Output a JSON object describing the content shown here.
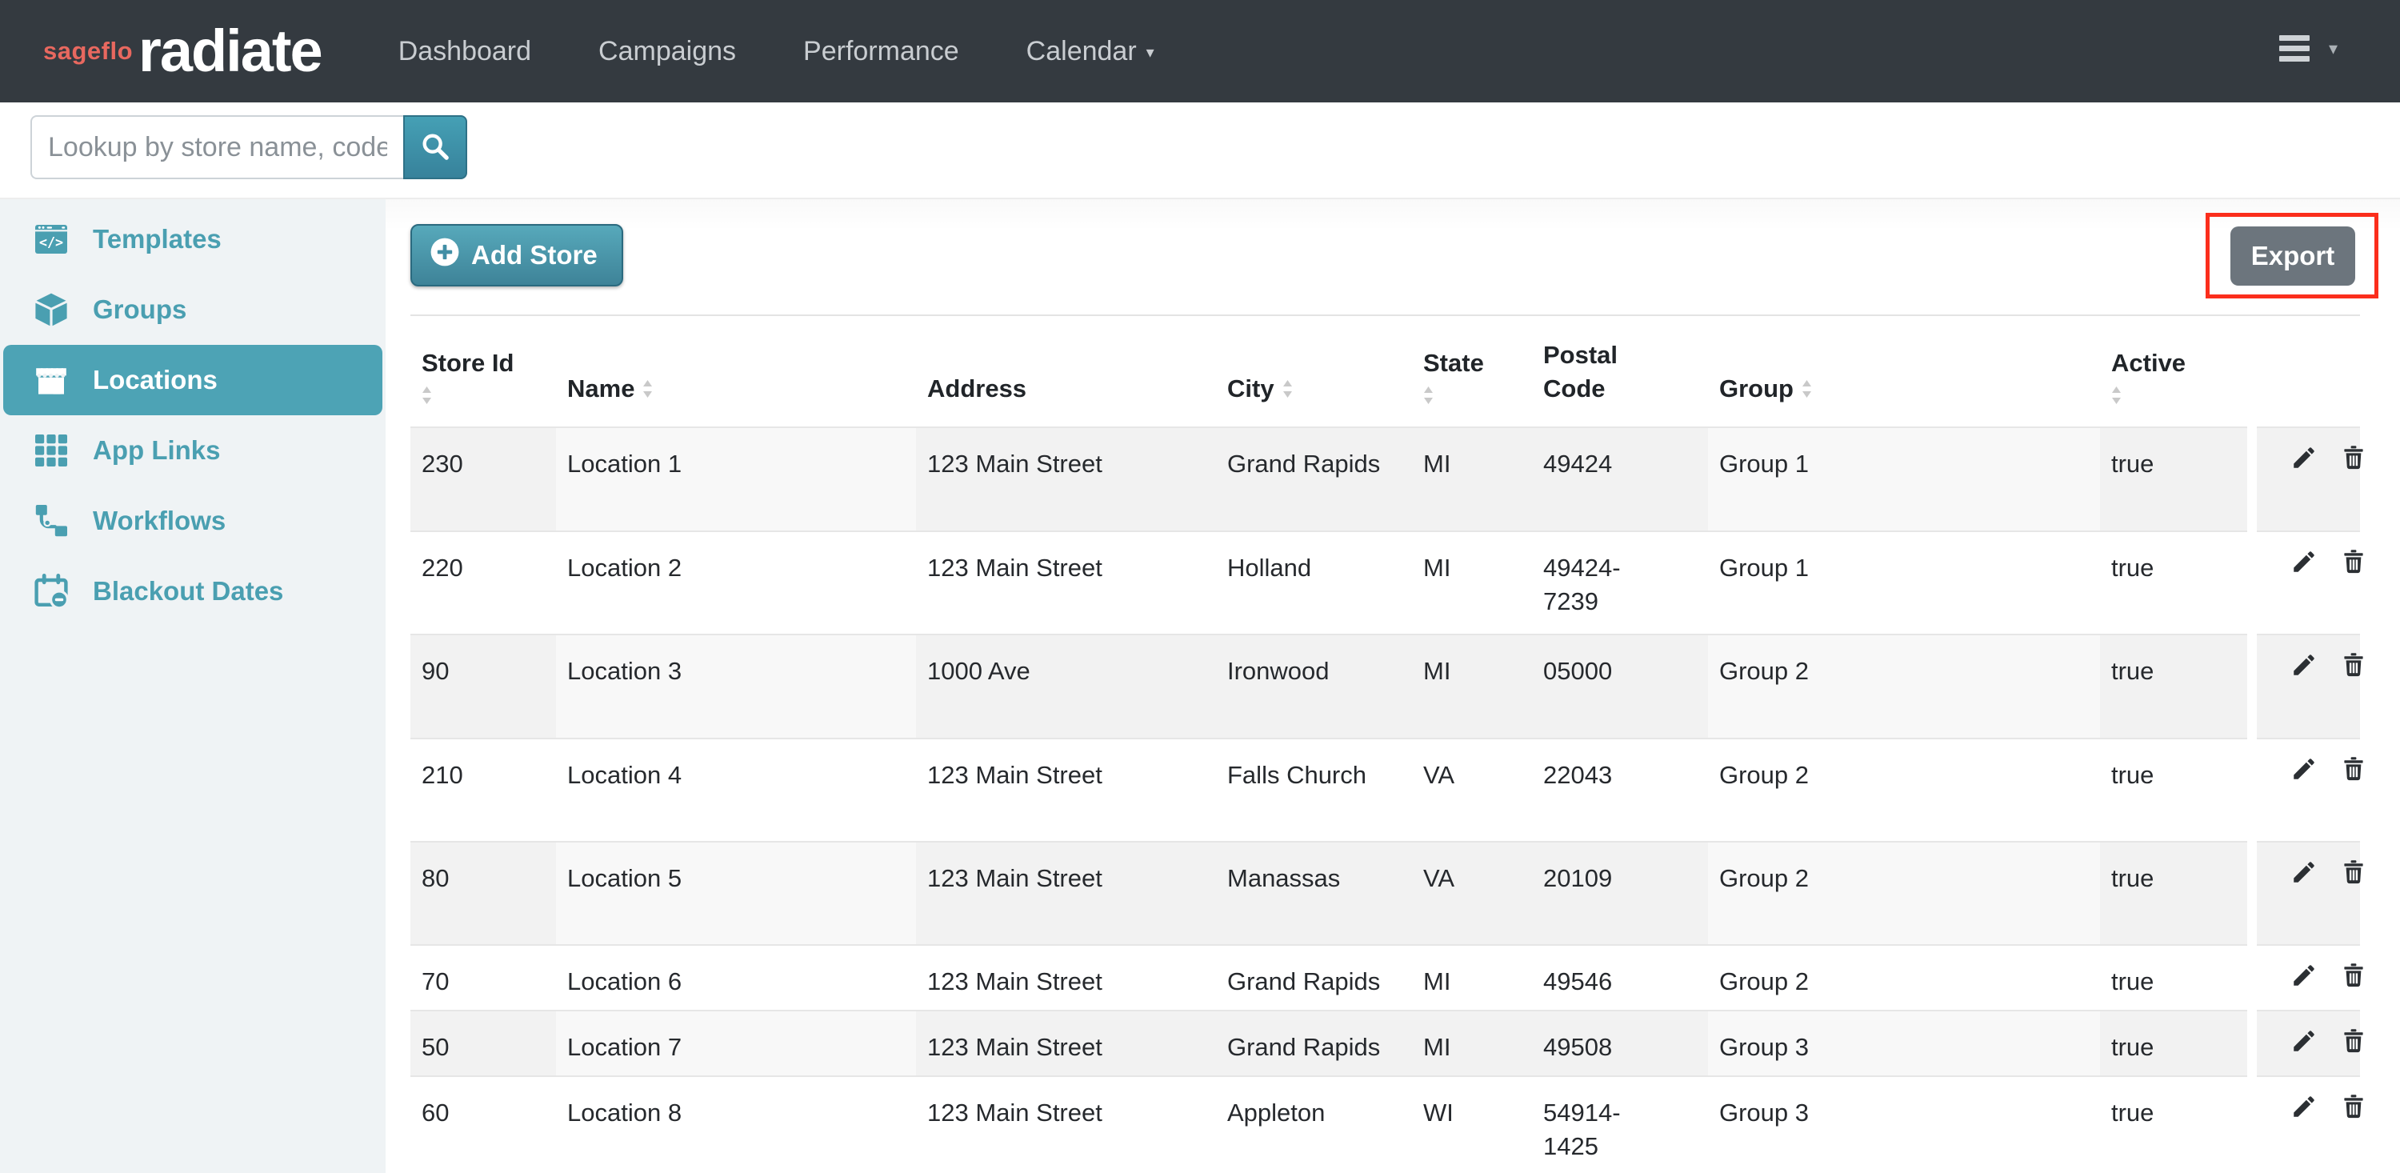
{
  "navbar": {
    "logo_prefix": "sageflo",
    "logo_text": "radiate",
    "items": [
      {
        "label": "Dashboard",
        "caret": false
      },
      {
        "label": "Campaigns",
        "caret": false
      },
      {
        "label": "Performance",
        "caret": false
      },
      {
        "label": "Calendar",
        "caret": true
      }
    ]
  },
  "search": {
    "placeholder": "Lookup by store name, code"
  },
  "sidebar": {
    "items": [
      {
        "label": "Templates",
        "icon": "templates-icon",
        "active": false
      },
      {
        "label": "Groups",
        "icon": "groups-icon",
        "active": false
      },
      {
        "label": "Locations",
        "icon": "locations-icon",
        "active": true
      },
      {
        "label": "App Links",
        "icon": "app-links-icon",
        "active": false
      },
      {
        "label": "Workflows",
        "icon": "workflows-icon",
        "active": false
      },
      {
        "label": "Blackout Dates",
        "icon": "blackout-dates-icon",
        "active": false
      }
    ]
  },
  "toolbar": {
    "add_store_label": "Add Store",
    "export_label": "Export"
  },
  "table": {
    "columns": [
      {
        "label": "Store Id",
        "sortable": true
      },
      {
        "label": "Name",
        "sortable": true
      },
      {
        "label": "Address",
        "sortable": false
      },
      {
        "label": "City",
        "sortable": true
      },
      {
        "label": "State",
        "sortable": true
      },
      {
        "label": "Postal Code",
        "sortable": false
      },
      {
        "label": "Group",
        "sortable": true
      },
      {
        "label": "Active",
        "sortable": true
      },
      {
        "label": "",
        "sortable": false
      }
    ],
    "rows": [
      {
        "store_id": "230",
        "name": "Location 1",
        "address": "123 Main Street",
        "city": "Grand Rapids",
        "state": "MI",
        "postal": "49424",
        "group": "Group 1",
        "active": "true"
      },
      {
        "store_id": "220",
        "name": "Location 2",
        "address": "123 Main Street",
        "city": "Holland",
        "state": "MI",
        "postal": "49424-7239",
        "group": "Group 1",
        "active": "true"
      },
      {
        "store_id": "90",
        "name": "Location 3",
        "address": "1000 Ave",
        "city": "Ironwood",
        "state": "MI",
        "postal": "05000",
        "group": "Group 2",
        "active": "true"
      },
      {
        "store_id": "210",
        "name": "Location 4",
        "address": "123 Main Street",
        "city": "Falls Church",
        "state": "VA",
        "postal": "22043",
        "group": "Group 2",
        "active": "true"
      },
      {
        "store_id": "80",
        "name": "Location 5",
        "address": "123 Main Street",
        "city": "Manassas",
        "state": "VA",
        "postal": "20109",
        "group": "Group 2",
        "active": "true"
      },
      {
        "store_id": "70",
        "name": "Location 6",
        "address": "123 Main Street",
        "city": "Grand Rapids",
        "state": "MI",
        "postal": "49546",
        "group": "Group 2",
        "active": "true"
      },
      {
        "store_id": "50",
        "name": "Location 7",
        "address": "123 Main Street",
        "city": "Grand Rapids",
        "state": "MI",
        "postal": "49508",
        "group": "Group 3",
        "active": "true"
      },
      {
        "store_id": "60",
        "name": "Location 8",
        "address": "123 Main Street",
        "city": "Appleton",
        "state": "WI",
        "postal": "54914-1425",
        "group": "Group 3",
        "active": "true"
      }
    ]
  },
  "colors": {
    "navbar_bg": "#343a40",
    "logo_red": "#e8685f",
    "accent_teal": "#4da3b5",
    "sidebar_bg": "#eff3f5",
    "stripe_gray": "#f2f2f2",
    "export_gray": "#6c757d",
    "annotation_red": "#fb2e1c"
  }
}
